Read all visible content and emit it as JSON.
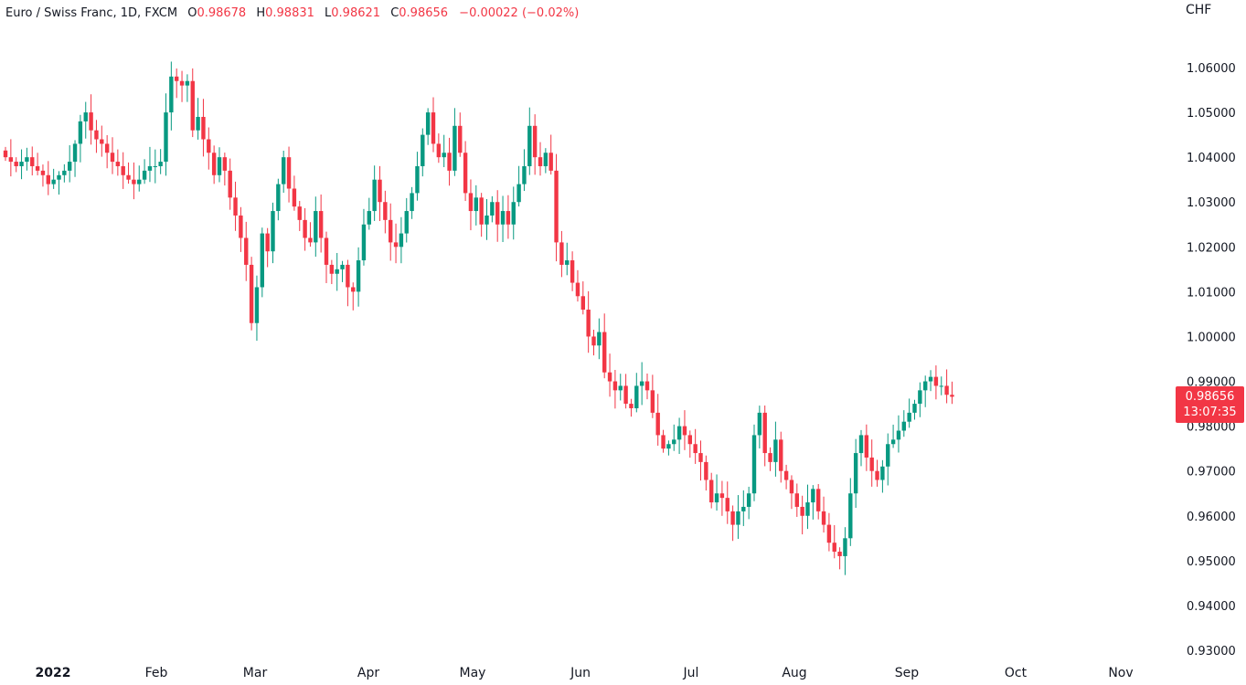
{
  "legend": {
    "symbol": "Euro / Swiss Franc, 1D, FXCM",
    "o_label": "O",
    "o_value": "0.98678",
    "h_label": "H",
    "h_value": "0.98831",
    "l_label": "L",
    "l_value": "0.98621",
    "c_label": "C",
    "c_value": "0.98656",
    "change": "−0.00022 (−0.02%)"
  },
  "currency": "CHF",
  "price_tag": {
    "price": "0.98656",
    "countdown": "13:07:35"
  },
  "colors": {
    "up": "#089981",
    "down": "#f23645",
    "axis_text": "#131722",
    "background": "#ffffff"
  },
  "chart_data": {
    "type": "candlestick",
    "title": "Euro / Swiss Franc, 1D, FXCM",
    "x_tick_labels": [
      "2022",
      "Feb",
      "Mar",
      "Apr",
      "May",
      "Jun",
      "Jul",
      "Aug",
      "Sep",
      "Oct",
      "Nov"
    ],
    "y_tick_labels": [
      "1.06000",
      "1.05000",
      "1.04000",
      "1.03000",
      "1.02000",
      "1.01000",
      "1.00000",
      "0.99000",
      "0.98000",
      "0.97000",
      "0.96000",
      "0.95000",
      "0.94000",
      "0.93000"
    ],
    "ylim": [
      0.925,
      1.073
    ],
    "grid": false,
    "x_unit": "trading days since start of chart",
    "close_series": [
      1.04,
      1.039,
      1.038,
      1.039,
      1.04,
      1.038,
      1.037,
      1.036,
      1.034,
      1.035,
      1.036,
      1.037,
      1.039,
      1.043,
      1.048,
      1.05,
      1.046,
      1.044,
      1.043,
      1.041,
      1.039,
      1.038,
      1.036,
      1.035,
      1.034,
      1.035,
      1.037,
      1.038,
      1.038,
      1.039,
      1.05,
      1.058,
      1.057,
      1.056,
      1.057,
      1.046,
      1.049,
      1.044,
      1.041,
      1.036,
      1.04,
      1.037,
      1.031,
      1.027,
      1.022,
      1.016,
      1.003,
      1.011,
      1.023,
      1.019,
      1.028,
      1.034,
      1.04,
      1.033,
      1.029,
      1.026,
      1.022,
      1.021,
      1.028,
      1.022,
      1.016,
      1.014,
      1.015,
      1.016,
      1.011,
      1.01,
      1.017,
      1.025,
      1.028,
      1.035,
      1.03,
      1.026,
      1.021,
      1.02,
      1.023,
      1.028,
      1.032,
      1.038,
      1.045,
      1.05,
      1.043,
      1.04,
      1.041,
      1.037,
      1.047,
      1.041,
      1.032,
      1.028,
      1.031,
      1.025,
      1.027,
      1.03,
      1.025,
      1.028,
      1.025,
      1.03,
      1.034,
      1.038,
      1.047,
      1.04,
      1.038,
      1.041,
      1.037,
      1.021,
      1.016,
      1.017,
      1.012,
      1.009,
      1.006,
      1.0,
      0.998,
      1.001,
      0.992,
      0.99,
      0.988,
      0.989,
      0.985,
      0.984,
      0.989,
      0.99,
      0.988,
      0.983,
      0.978,
      0.975,
      0.976,
      0.977,
      0.98,
      0.978,
      0.976,
      0.974,
      0.972,
      0.968,
      0.963,
      0.965,
      0.964,
      0.961,
      0.958,
      0.961,
      0.962,
      0.965,
      0.978,
      0.983,
      0.974,
      0.972,
      0.977,
      0.97,
      0.968,
      0.965,
      0.962,
      0.96,
      0.963,
      0.966,
      0.961,
      0.958,
      0.954,
      0.952,
      0.951,
      0.955,
      0.965,
      0.974,
      0.978,
      0.973,
      0.97,
      0.968,
      0.971,
      0.976,
      0.977,
      0.979,
      0.981,
      0.983,
      0.985,
      0.988,
      0.99,
      0.991,
      0.989,
      0.989,
      0.987,
      0.98656
    ]
  }
}
